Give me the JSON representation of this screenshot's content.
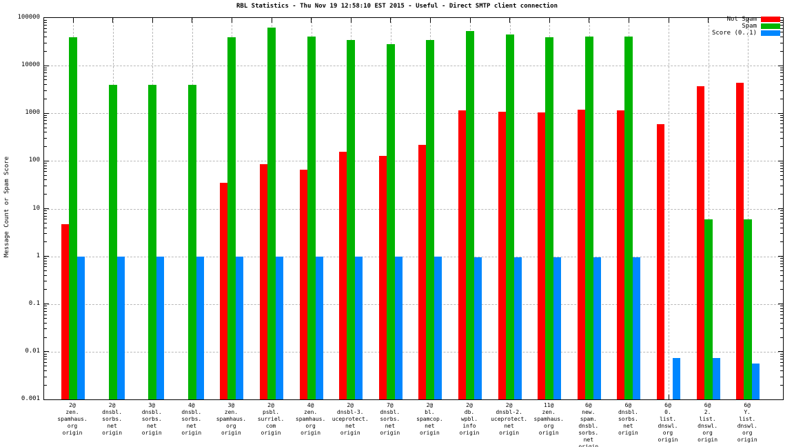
{
  "title": "RBL Statistics - Thu Nov 19 12:58:10 EST 2015 - Useful - Direct SMTP client connection",
  "y_axis": {
    "label": "Message Count or Spam Score",
    "ticks": [
      "100000",
      "10000",
      "1000",
      "100",
      "10",
      "1",
      "0.1",
      "0.01",
      "0.001"
    ],
    "scale": "log",
    "min": 0.001,
    "max": 100000
  },
  "legend": {
    "position": "top-right",
    "items": [
      {
        "label": "Not Spam",
        "color": "#ff0000"
      },
      {
        "label": "Spam",
        "color": "#00b400"
      },
      {
        "label": "Score (0..1)",
        "color": "#0087ff"
      }
    ]
  },
  "colors": {
    "not_spam": "#ff0000",
    "spam": "#00b400",
    "score": "#0087ff",
    "grid": "#b9b9b9",
    "axis": "#000000",
    "background": "#ffffff"
  },
  "chart_data": {
    "type": "bar",
    "scale_y": "log",
    "ylim": [
      0.001,
      100000
    ],
    "grid": true,
    "title": "RBL Statistics - Thu Nov 19 12:58:10 EST 2015 - Useful - Direct SMTP client connection",
    "ylabel": "Message Count or Spam Score",
    "xlabel": "",
    "legend_position": "top-right",
    "categories": [
      [
        "2@",
        "zen.",
        "spamhaus.",
        "org",
        "origin"
      ],
      [
        "2@",
        "dnsbl.",
        "sorbs.",
        "net",
        "origin"
      ],
      [
        "3@",
        "dnsbl.",
        "sorbs.",
        "net",
        "origin"
      ],
      [
        "4@",
        "dnsbl.",
        "sorbs.",
        "net",
        "origin"
      ],
      [
        "3@",
        "zen.",
        "spamhaus.",
        "org",
        "origin"
      ],
      [
        "2@",
        "psbl.",
        "surriel.",
        "com",
        "origin"
      ],
      [
        "4@",
        "zen.",
        "spamhaus.",
        "org",
        "origin"
      ],
      [
        "2@",
        "dnsbl-3.",
        "uceprotect.",
        "net",
        "origin"
      ],
      [
        "7@",
        "dnsbl.",
        "sorbs.",
        "net",
        "origin"
      ],
      [
        "2@",
        "bl.",
        "spamcop.",
        "net",
        "origin"
      ],
      [
        "2@",
        "db.",
        "wpbl.",
        "info",
        "origin"
      ],
      [
        "2@",
        "dnsbl-2.",
        "uceprotect.",
        "net",
        "origin"
      ],
      [
        "11@",
        "zen.",
        "spamhaus.",
        "org",
        "origin"
      ],
      [
        "6@",
        "new.",
        "spam.",
        "dnsbl.",
        "sorbs.",
        "net",
        "origin"
      ],
      [
        "6@",
        "dnsbl.",
        "sorbs.",
        "net",
        "origin"
      ],
      [
        "6@",
        "0.",
        "list.",
        "dnswl.",
        "org",
        "origin"
      ],
      [
        "6@",
        "2.",
        "list.",
        "dnswl.",
        "org",
        "origin"
      ],
      [
        "6@",
        "Y.",
        "list.",
        "dnswl.",
        "org",
        "origin"
      ]
    ],
    "series": [
      {
        "name": "Not Spam",
        "color": "#ff0000",
        "values": [
          4.8,
          0,
          0,
          0,
          35,
          85,
          65,
          155,
          130,
          215,
          1150,
          1070,
          1060,
          1180,
          1160,
          600,
          3700,
          4400
        ]
      },
      {
        "name": "Spam",
        "color": "#00b400",
        "values": [
          39000,
          3900,
          3900,
          3900,
          40000,
          63000,
          41000,
          35000,
          28000,
          35000,
          54000,
          45000,
          39000,
          41000,
          41000,
          0,
          6,
          5.9
        ]
      },
      {
        "name": "Score (0..1)",
        "color": "#0087ff",
        "values": [
          1.0,
          1.0,
          1.0,
          1.0,
          1.0,
          1.0,
          1.0,
          1.0,
          1.0,
          1.0,
          0.95,
          0.95,
          0.95,
          0.95,
          0.95,
          0.0073,
          0.0073,
          0.0057
        ]
      }
    ]
  }
}
